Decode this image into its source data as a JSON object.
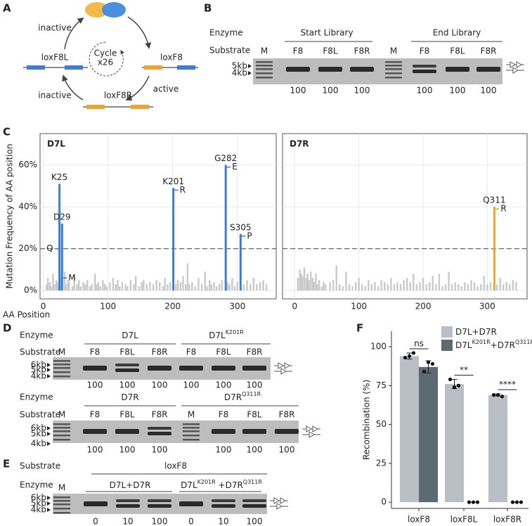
{
  "panel_labels": [
    "A",
    "B",
    "C",
    "D",
    "E",
    "F"
  ],
  "panel_a": {
    "top_label": "inactive",
    "left": "loxF8L",
    "center": [
      "Cycle",
      "x26"
    ],
    "right": "loxF8",
    "right_label": "active",
    "bottom": "loxF8R",
    "bottom_label": "inactive"
  },
  "panel_b": {
    "row_labels": [
      "Enzyme",
      "Substrate"
    ],
    "groups": [
      "Start Library",
      "End Library"
    ],
    "lanes": [
      "M",
      "F8",
      "F8L",
      "F8R",
      "M",
      "F8",
      "F8L",
      "F8R"
    ],
    "markers": [
      "5kb",
      "4kb"
    ],
    "numbers": [
      100,
      100,
      100,
      100,
      100,
      100
    ]
  },
  "panel_d": {
    "rows": [
      {
        "row_labels": [
          "Enzyme",
          "Substrate"
        ],
        "enzymes": [
          [
            "D7L"
          ],
          [
            "D7L",
            "K201R"
          ]
        ],
        "lanes": [
          "M",
          "F8",
          "F8L",
          "F8R",
          "F8",
          "F8L",
          "F8R"
        ],
        "markers": [
          "6kb",
          "5kb",
          "4kb"
        ],
        "numbers": [
          100,
          100,
          100,
          100,
          100,
          100
        ]
      },
      {
        "row_labels": [
          "Enzyme",
          "Substrate"
        ],
        "enzymes": [
          [
            "D7R"
          ],
          [
            "D7R",
            "Q311R"
          ]
        ],
        "lanes": [
          "M",
          "F8",
          "F8L",
          "F8R",
          "M",
          "F8",
          "F8L",
          "F8R"
        ],
        "markers": [
          "6kb",
          "5kb",
          "4kb"
        ],
        "numbers": [
          100,
          100,
          100,
          100,
          100,
          100
        ]
      }
    ]
  },
  "panel_e": {
    "row_labels": [
      "Substrate",
      "Enzyme"
    ],
    "substrate": "loxF8",
    "lane_m": "M",
    "enzymes": [
      [
        "D7L+D7R"
      ],
      [
        "D7L",
        "K201R",
        " +D7R",
        "Q311R"
      ]
    ],
    "markers": [
      "6kb",
      "5kb",
      "4kb"
    ],
    "numbers": [
      0,
      10,
      100,
      0,
      10,
      100
    ]
  },
  "chart_data": [
    {
      "type": "bar",
      "title": "D7L",
      "y_label": "Mutation Frequency of AA position",
      "x_label": "AA Position",
      "x": [
        5,
        7,
        10,
        12,
        15,
        17,
        20,
        22,
        27,
        33,
        35,
        38,
        40,
        45,
        48,
        52,
        55,
        58,
        62,
        65,
        68,
        72,
        75,
        80,
        82,
        85,
        88,
        92,
        95,
        98,
        103,
        108,
        112,
        115,
        118,
        122,
        127,
        130,
        135,
        140,
        143,
        148,
        152,
        155,
        160,
        165,
        170,
        175,
        180,
        185,
        188,
        192,
        196,
        205,
        208,
        212,
        216,
        220,
        223,
        226,
        230,
        235,
        240,
        245,
        250,
        253,
        257,
        260,
        264,
        268,
        272,
        276,
        285,
        288,
        292,
        296,
        300,
        310,
        315,
        320,
        325,
        330,
        335,
        340,
        345
      ],
      "values": [
        3,
        6,
        4,
        2,
        8,
        3,
        5,
        4,
        6,
        9,
        3,
        5,
        4,
        2,
        7,
        3,
        5,
        2,
        4,
        3,
        5,
        2,
        3,
        8,
        3,
        4,
        2,
        5,
        3,
        2,
        4,
        6,
        3,
        5,
        2,
        4,
        3,
        2,
        5,
        3,
        7,
        2,
        4,
        5,
        3,
        4,
        3,
        5,
        4,
        2,
        6,
        3,
        4,
        3,
        5,
        4,
        7,
        3,
        13,
        3,
        4,
        2,
        6,
        3,
        9,
        2,
        5,
        3,
        4,
        2,
        3,
        5,
        4,
        3,
        6,
        2,
        4,
        3,
        5,
        3,
        6,
        3,
        4,
        5,
        3
      ],
      "color": "#c9c9c9",
      "highlight_color": "#3b7dd8",
      "threshold": 20,
      "highlights": [
        {
          "label": "K25",
          "x": 25,
          "value": 51,
          "substitution": "Q",
          "substitution_value": 20,
          "side": "left"
        },
        {
          "label": "D29",
          "x": 29,
          "value": 32,
          "substitution": "M",
          "substitution_value": 6,
          "side": "right"
        },
        {
          "label": "K201",
          "x": 201,
          "value": 49,
          "substitution": "R",
          "substitution_value": 48,
          "side": "right"
        },
        {
          "label": "G282",
          "x": 282,
          "value": 60,
          "substitution": "E",
          "substitution_value": 59,
          "side": "right"
        },
        {
          "label": "S305",
          "x": 305,
          "value": 27,
          "substitution": "P",
          "substitution_value": 26,
          "side": "right"
        }
      ],
      "xlim": [
        -5,
        360
      ],
      "xticks": [
        0,
        100,
        200,
        300
      ],
      "ylim": [
        -4,
        75
      ],
      "yticks": [
        {
          "value": 0,
          "label": "0%"
        },
        {
          "value": 20,
          "label": "20%"
        },
        {
          "value": 40,
          "label": "40%"
        },
        {
          "value": 60,
          "label": "60%"
        }
      ],
      "show_ytick_labels": true,
      "grid": true
    },
    {
      "type": "bar",
      "title": "D7R",
      "x": [
        5,
        8,
        10,
        12,
        15,
        18,
        20,
        22,
        25,
        28,
        30,
        33,
        35,
        38,
        42,
        45,
        48,
        55,
        60,
        65,
        70,
        75,
        80,
        85,
        90,
        95,
        100,
        105,
        110,
        115,
        120,
        125,
        130,
        135,
        140,
        145,
        150,
        155,
        160,
        165,
        170,
        175,
        180,
        185,
        190,
        195,
        200,
        205,
        210,
        215,
        220,
        225,
        230,
        235,
        240,
        245,
        250,
        255,
        260,
        265,
        270,
        275,
        280,
        285,
        290,
        295,
        300,
        305,
        315,
        320,
        325,
        330,
        335,
        340,
        345
      ],
      "values": [
        6,
        10,
        8,
        7,
        11,
        6,
        8,
        5,
        9,
        6,
        4,
        8,
        3,
        5,
        2,
        4,
        3,
        4,
        5,
        12,
        3,
        2,
        9,
        3,
        2,
        4,
        6,
        3,
        2,
        5,
        3,
        4,
        2,
        5,
        4,
        3,
        6,
        3,
        4,
        3,
        5,
        6,
        4,
        8,
        3,
        4,
        6,
        3,
        4,
        7,
        3,
        8,
        2,
        3,
        9,
        3,
        4,
        3,
        2,
        4,
        3,
        5,
        4,
        2,
        3,
        7,
        3,
        4,
        3,
        6,
        3,
        4,
        3,
        5,
        4
      ],
      "color": "#c9c9c9",
      "highlight_color": "#f0a232",
      "threshold": 20,
      "highlights": [
        {
          "label": "Q311",
          "x": 311,
          "value": 40,
          "substitution": "R",
          "substitution_value": 39,
          "side": "right"
        }
      ],
      "xlim": [
        -19,
        362
      ],
      "xticks": [
        0,
        100,
        200,
        300
      ],
      "ylim": [
        -4,
        75
      ],
      "yticks": [
        0,
        20,
        40,
        60
      ],
      "show_ytick_labels": false,
      "grid": true
    },
    {
      "type": "grouped_bar",
      "y_label": "Recombination (%)",
      "categories": [
        "loxF8",
        "loxF8L",
        "loxF8R"
      ],
      "series": [
        {
          "name": [
            "D7L+D7R"
          ],
          "color": "#b9bfc4",
          "values": [
            94,
            76,
            69
          ],
          "errors": [
            2,
            3,
            0.7
          ],
          "points": [
            [
              93,
              94,
              96
            ],
            [
              79,
              74,
              75
            ],
            [
              69,
              69,
              68
            ]
          ]
        },
        {
          "name": [
            "D7L",
            "K201R",
            "+D7R",
            "Q311R"
          ],
          "color": "#5e6a72",
          "values": [
            87,
            0,
            0
          ],
          "errors": [
            4,
            0,
            0
          ],
          "points": [
            [
              84,
              90,
              89
            ],
            [
              0,
              0,
              0
            ],
            [
              0,
              0,
              0
            ]
          ]
        }
      ],
      "significance": [
        "ns",
        "**",
        "****"
      ],
      "ylim": [
        -4,
        110
      ],
      "yticks": [
        0,
        25,
        50,
        75,
        100
      ],
      "legend": "top-right"
    }
  ]
}
